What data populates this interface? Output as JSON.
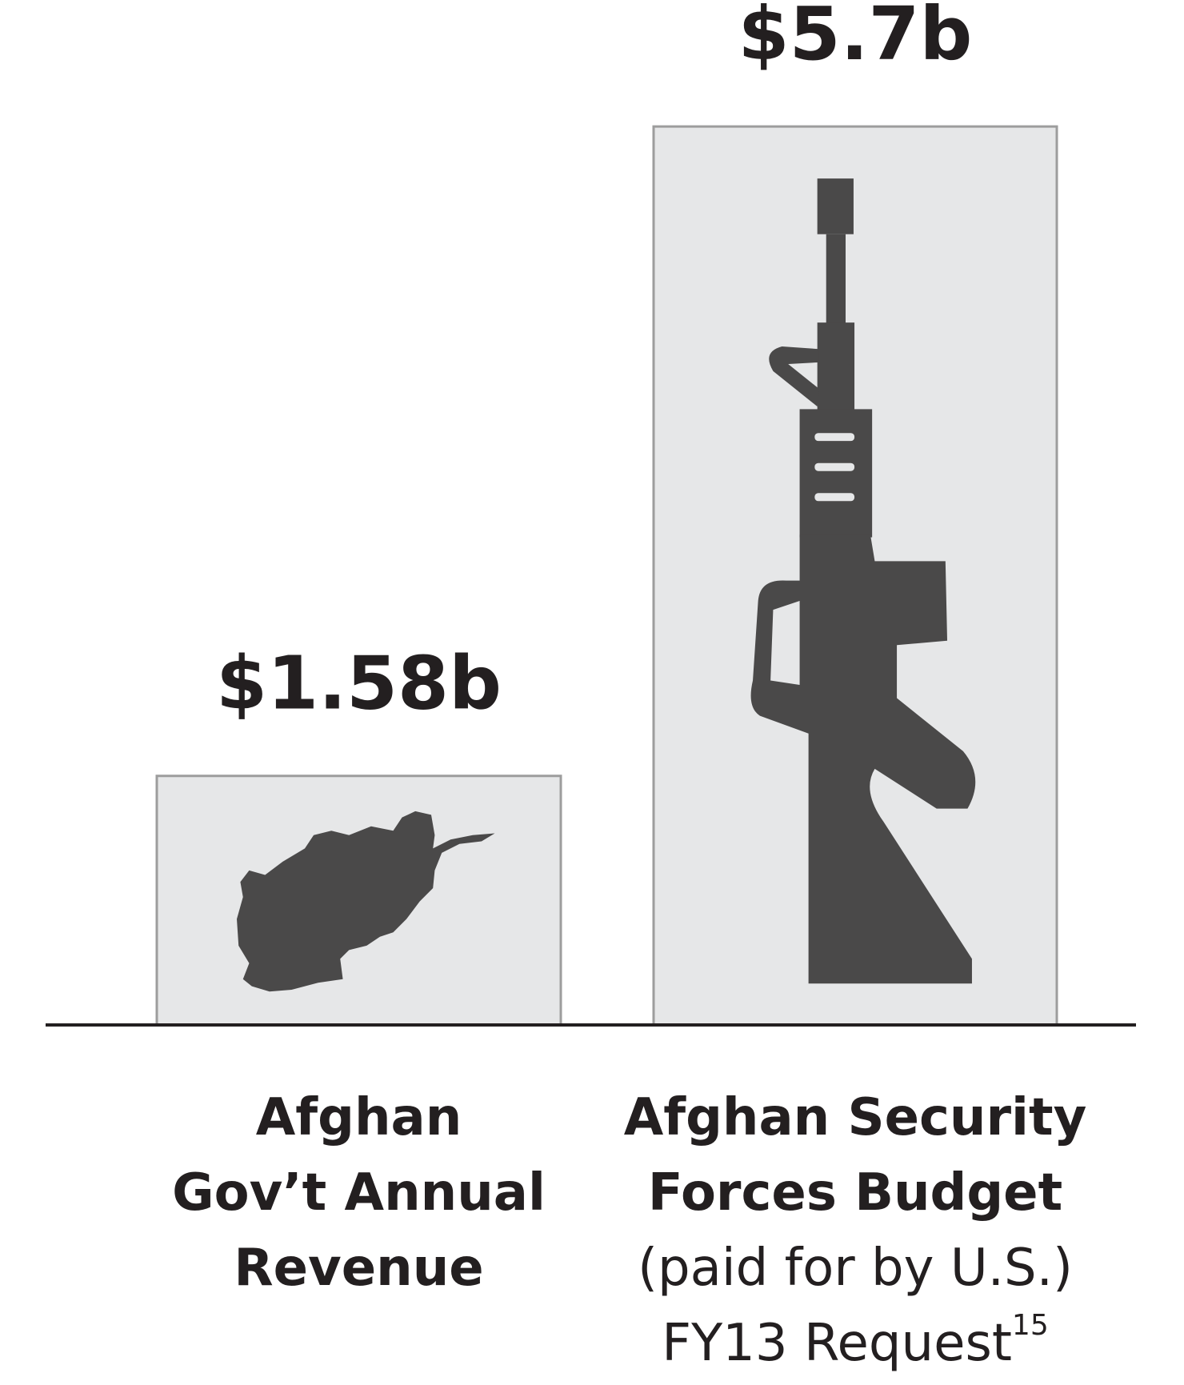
{
  "chart_data": {
    "type": "bar",
    "categories": [
      "Afghan\nGov’t Annual\nRevenue",
      "Afghan Security\nForces Budget"
    ],
    "category_notes": [
      null,
      "(paid for by U.S.)\nFY13 Request"
    ],
    "footnote": "15",
    "values": [
      1.58,
      5.7
    ],
    "value_labels": [
      "$1.58b",
      "$5.7b"
    ],
    "color": "#e6e7e8"
  }
}
